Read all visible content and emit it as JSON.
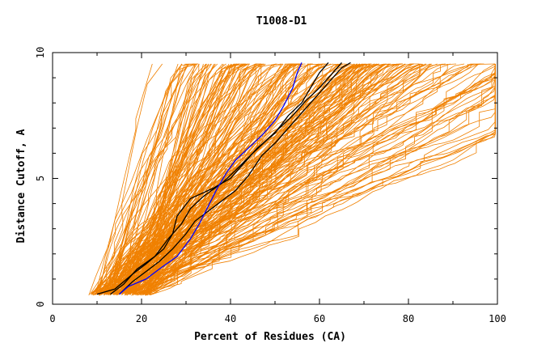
{
  "chart_data": {
    "type": "line",
    "title": "T1008-D1",
    "xlabel": "Percent of Residues (CA)",
    "ylabel": "Distance Cutoff, A",
    "xlim": [
      0,
      100
    ],
    "ylim": [
      0,
      10
    ],
    "x_ticks": [
      "0",
      "20",
      "40",
      "60",
      "80",
      "100"
    ],
    "y_ticks": [
      "0",
      "5",
      "10"
    ],
    "colors": {
      "background_models": "#f08000",
      "highlight_black": "#000000",
      "highlight_blue": "#0000ff"
    },
    "series": [
      {
        "color": "#000000",
        "points": [
          [
            10,
            0.4
          ],
          [
            14,
            0.6
          ],
          [
            18,
            1.2
          ],
          [
            21,
            1.6
          ],
          [
            25,
            2.2
          ],
          [
            27,
            2.8
          ],
          [
            28,
            3.5
          ],
          [
            31,
            4.2
          ],
          [
            36,
            4.6
          ],
          [
            40,
            5.0
          ],
          [
            43,
            5.6
          ],
          [
            46,
            6.2
          ],
          [
            50,
            6.8
          ],
          [
            53,
            7.5
          ],
          [
            56,
            8.0
          ],
          [
            58,
            8.6
          ],
          [
            60,
            9.2
          ],
          [
            62,
            9.6
          ]
        ]
      },
      {
        "color": "#000000",
        "points": [
          [
            13,
            0.4
          ],
          [
            16,
            0.8
          ],
          [
            19,
            1.4
          ],
          [
            23,
            1.9
          ],
          [
            26,
            2.6
          ],
          [
            29,
            3.2
          ],
          [
            31,
            3.8
          ],
          [
            34,
            4.3
          ],
          [
            38,
            4.8
          ],
          [
            41,
            5.3
          ],
          [
            45,
            6.0
          ],
          [
            48,
            6.5
          ],
          [
            51,
            7.0
          ],
          [
            54,
            7.5
          ],
          [
            57,
            8.1
          ],
          [
            60,
            8.6
          ],
          [
            63,
            9.2
          ],
          [
            65,
            9.6
          ]
        ]
      },
      {
        "color": "#000000",
        "points": [
          [
            15,
            0.4
          ],
          [
            18,
            0.9
          ],
          [
            21,
            1.3
          ],
          [
            24,
            1.7
          ],
          [
            27,
            2.2
          ],
          [
            30,
            2.8
          ],
          [
            32,
            3.3
          ],
          [
            35,
            3.7
          ],
          [
            38,
            4.1
          ],
          [
            41,
            4.5
          ],
          [
            44,
            5.1
          ],
          [
            47,
            5.9
          ],
          [
            50,
            6.4
          ],
          [
            53,
            7.0
          ],
          [
            56,
            7.6
          ],
          [
            59,
            8.2
          ],
          [
            62,
            8.8
          ],
          [
            65,
            9.4
          ],
          [
            67,
            9.6
          ]
        ]
      },
      {
        "color": "#0000ff",
        "points": [
          [
            15,
            0.4
          ],
          [
            17,
            0.7
          ],
          [
            21,
            1.0
          ],
          [
            24,
            1.4
          ],
          [
            28,
            1.9
          ],
          [
            31,
            2.6
          ],
          [
            33,
            3.2
          ],
          [
            35,
            3.9
          ],
          [
            37,
            4.6
          ],
          [
            39,
            5.2
          ],
          [
            41,
            5.7
          ],
          [
            44,
            6.2
          ],
          [
            47,
            6.7
          ],
          [
            50,
            7.3
          ],
          [
            52,
            7.9
          ],
          [
            54,
            8.6
          ],
          [
            55,
            9.2
          ],
          [
            56,
            9.6
          ]
        ]
      }
    ]
  }
}
